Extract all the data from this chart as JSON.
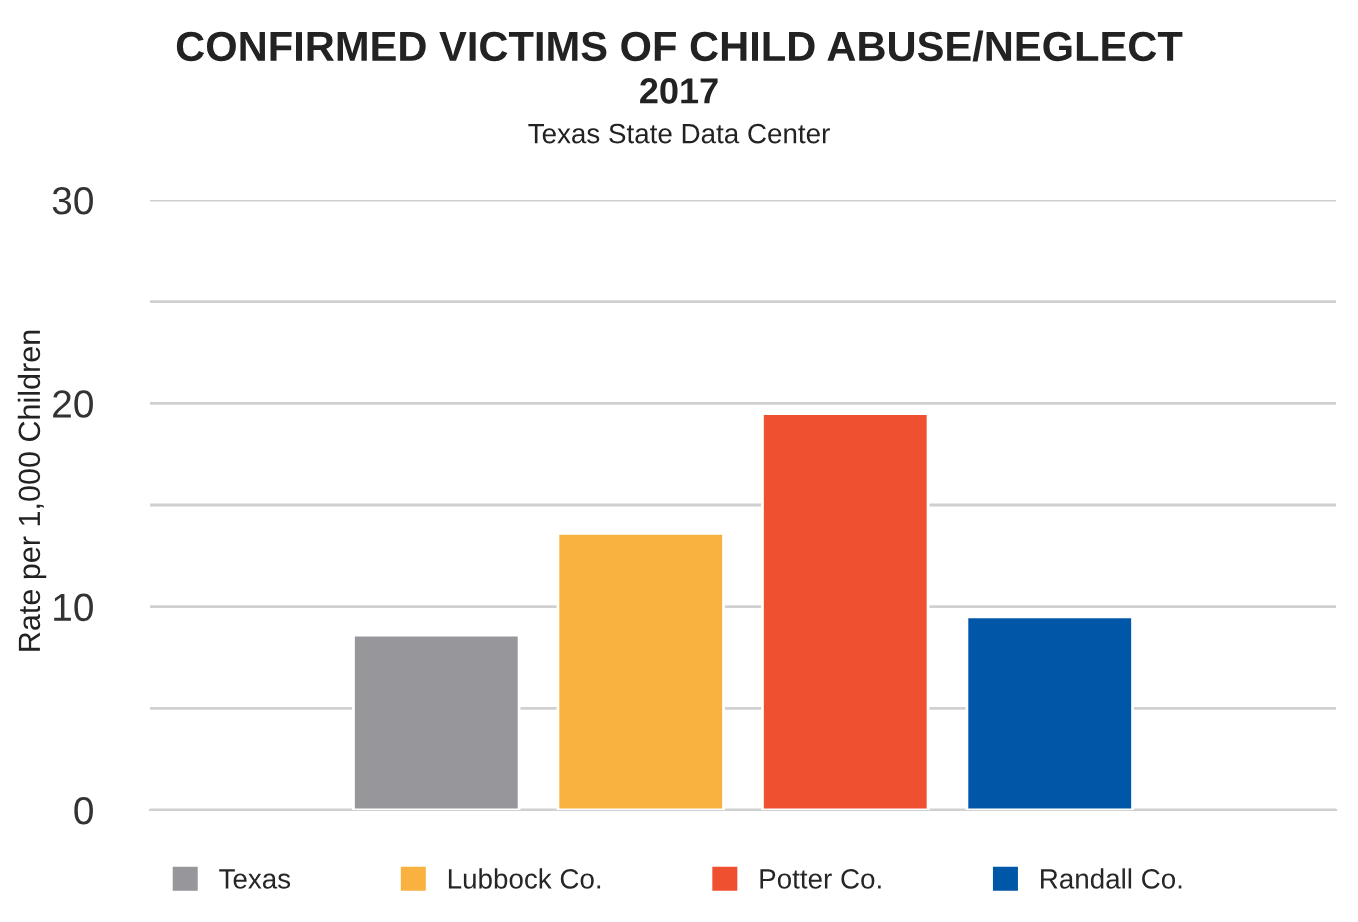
{
  "chart_data": {
    "type": "bar",
    "title": "CONFIRMED VICTIMS OF CHILD ABUSE/NEGLECT",
    "subtitle": "2017",
    "annotations": [
      "Texas State Data Center"
    ],
    "ylabel": "Rate per 1,000 Children",
    "categories": [
      null
    ],
    "series": [
      {
        "name": "Texas",
        "color": "#97979b",
        "values": [
          8.6
        ]
      },
      {
        "name": "Lubbock Co.",
        "color": "#f9b13f",
        "values": [
          13.6
        ]
      },
      {
        "name": "Potter Co.",
        "color": "#ef5030",
        "values": [
          19.5
        ]
      },
      {
        "name": "Randall Co.",
        "color": "#0057a8",
        "values": [
          9.5
        ]
      }
    ],
    "ylim": [
      0,
      30
    ],
    "yticks": [
      0,
      {
        "value": 5,
        "label": null
      },
      10,
      {
        "value": 15,
        "label": null
      },
      20,
      {
        "value": 25,
        "label": null
      },
      30
    ],
    "grid": "y",
    "legend": "bottom",
    "tick_labels": "y"
  }
}
